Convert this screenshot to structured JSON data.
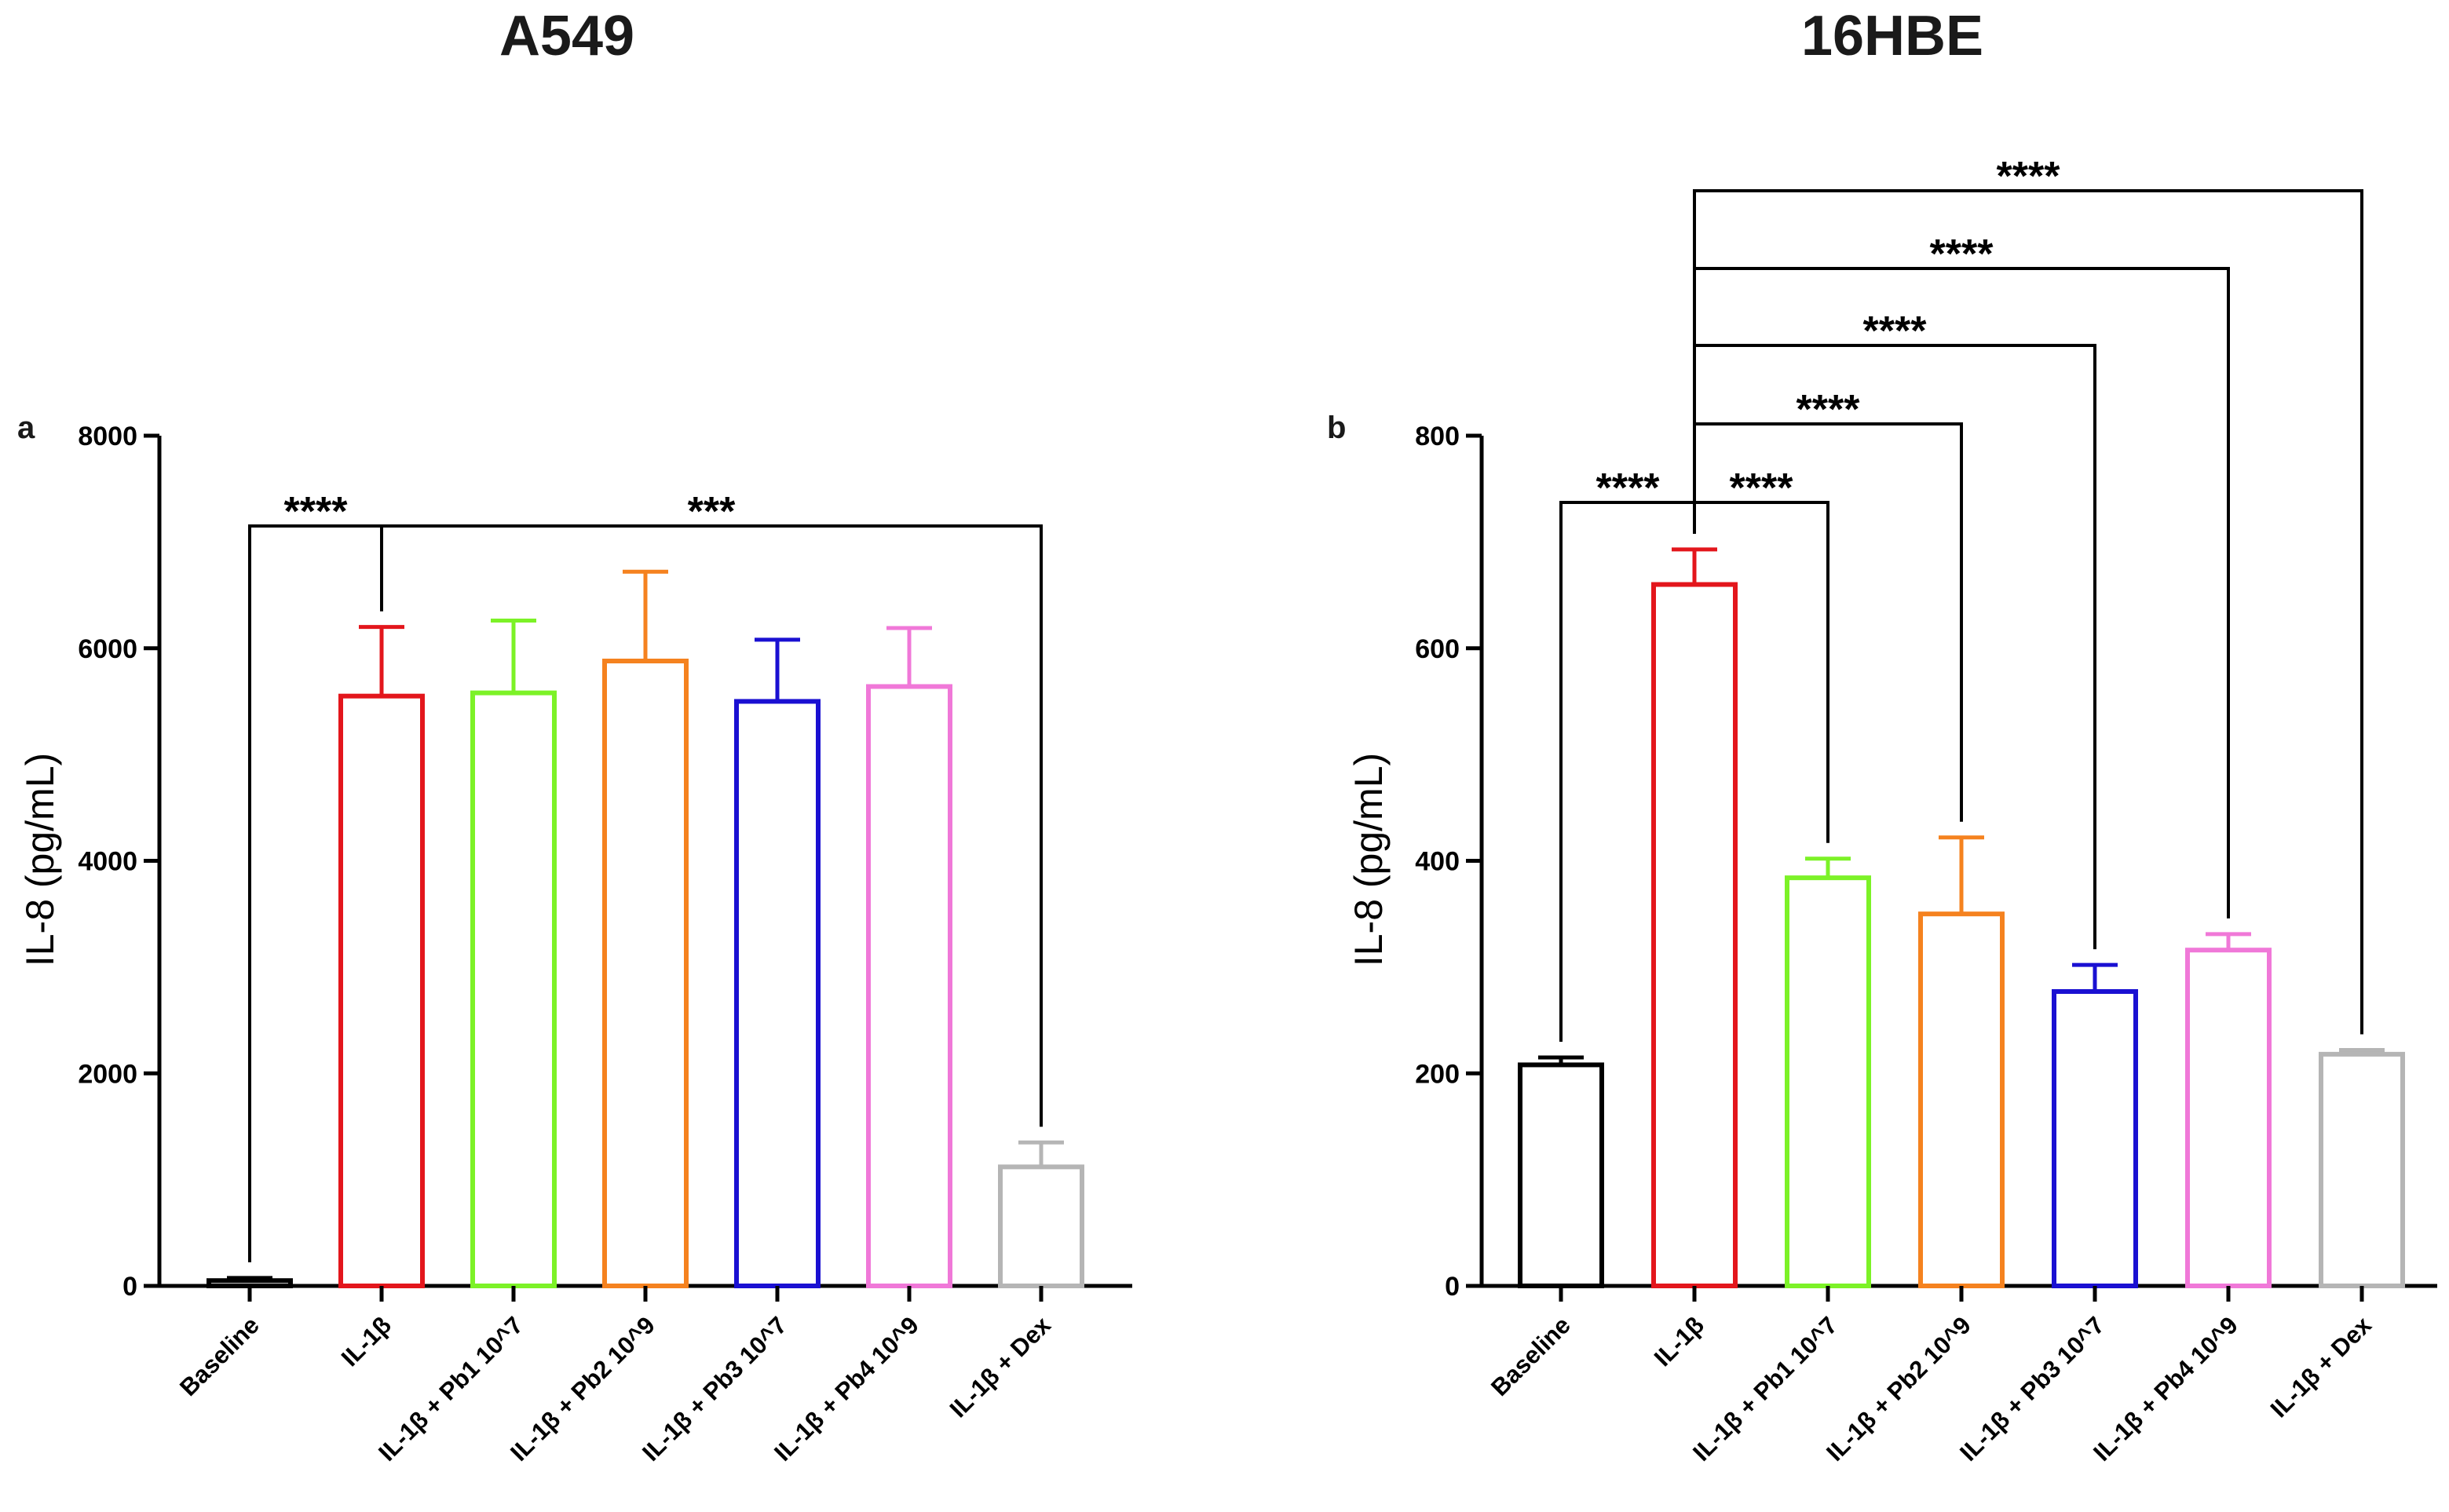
{
  "figure_titles": [
    "A549",
    "16HBE"
  ],
  "chart_data": [
    {
      "type": "bar",
      "panel": "a",
      "title": "A549",
      "xlabel": "",
      "ylabel": "IL-8 (pg/mL)",
      "ylim": [
        0,
        8000
      ],
      "yticks": [
        0,
        2000,
        4000,
        6000,
        8000
      ],
      "ytick_labels": [
        "0",
        "2000",
        "4000",
        "6000",
        "8000"
      ],
      "categories": [
        "Baseline",
        "IL-1β",
        "IL-1β + Pb1 10^7",
        "IL-1β + Pb2 10^9",
        "IL-1β + Pb3 10^7",
        "IL-1β + Pb4 10^9",
        "IL-1β + Dex"
      ],
      "values": [
        50,
        5550,
        5580,
        5880,
        5500,
        5640,
        1120
      ],
      "errors": [
        25,
        650,
        680,
        840,
        580,
        550,
        230
      ],
      "colors": [
        "#000000",
        "#e3161c",
        "#7cf227",
        "#f5821f",
        "#1a10d2",
        "#f078d8",
        "#b5b5b5"
      ],
      "comparisons": [
        {
          "from": 0,
          "to": 1,
          "label": "****"
        },
        {
          "from": 1,
          "to": 6,
          "label": "***"
        }
      ]
    },
    {
      "type": "bar",
      "panel": "b",
      "title": "16HBE",
      "xlabel": "",
      "ylabel": "IL-8 (pg/mL)",
      "ylim": [
        0,
        800
      ],
      "yticks": [
        0,
        200,
        400,
        600,
        800
      ],
      "ytick_labels": [
        "0",
        "200",
        "400",
        "600",
        "800"
      ],
      "categories": [
        "Baseline",
        "IL-1β",
        "IL-1β + Pb1 10^7",
        "IL-1β + Pb2 10^9",
        "IL-1β + Pb3 10^7",
        "IL-1β + Pb4 10^9",
        "IL-1β + Dex"
      ],
      "values": [
        208,
        660,
        384,
        350,
        277,
        316,
        218
      ],
      "errors": [
        7,
        33,
        18,
        72,
        25,
        15,
        4
      ],
      "colors": [
        "#000000",
        "#e3161c",
        "#7cf227",
        "#f5821f",
        "#1a10d2",
        "#f078d8",
        "#b5b5b5"
      ],
      "comparisons": [
        {
          "from": 0,
          "to": 1,
          "label": "****"
        },
        {
          "from": 1,
          "to": 2,
          "label": "****"
        },
        {
          "from": 1,
          "to": 3,
          "label": "****"
        },
        {
          "from": 1,
          "to": 4,
          "label": "****"
        },
        {
          "from": 1,
          "to": 5,
          "label": "****"
        },
        {
          "from": 1,
          "to": 6,
          "label": "****"
        }
      ]
    }
  ]
}
